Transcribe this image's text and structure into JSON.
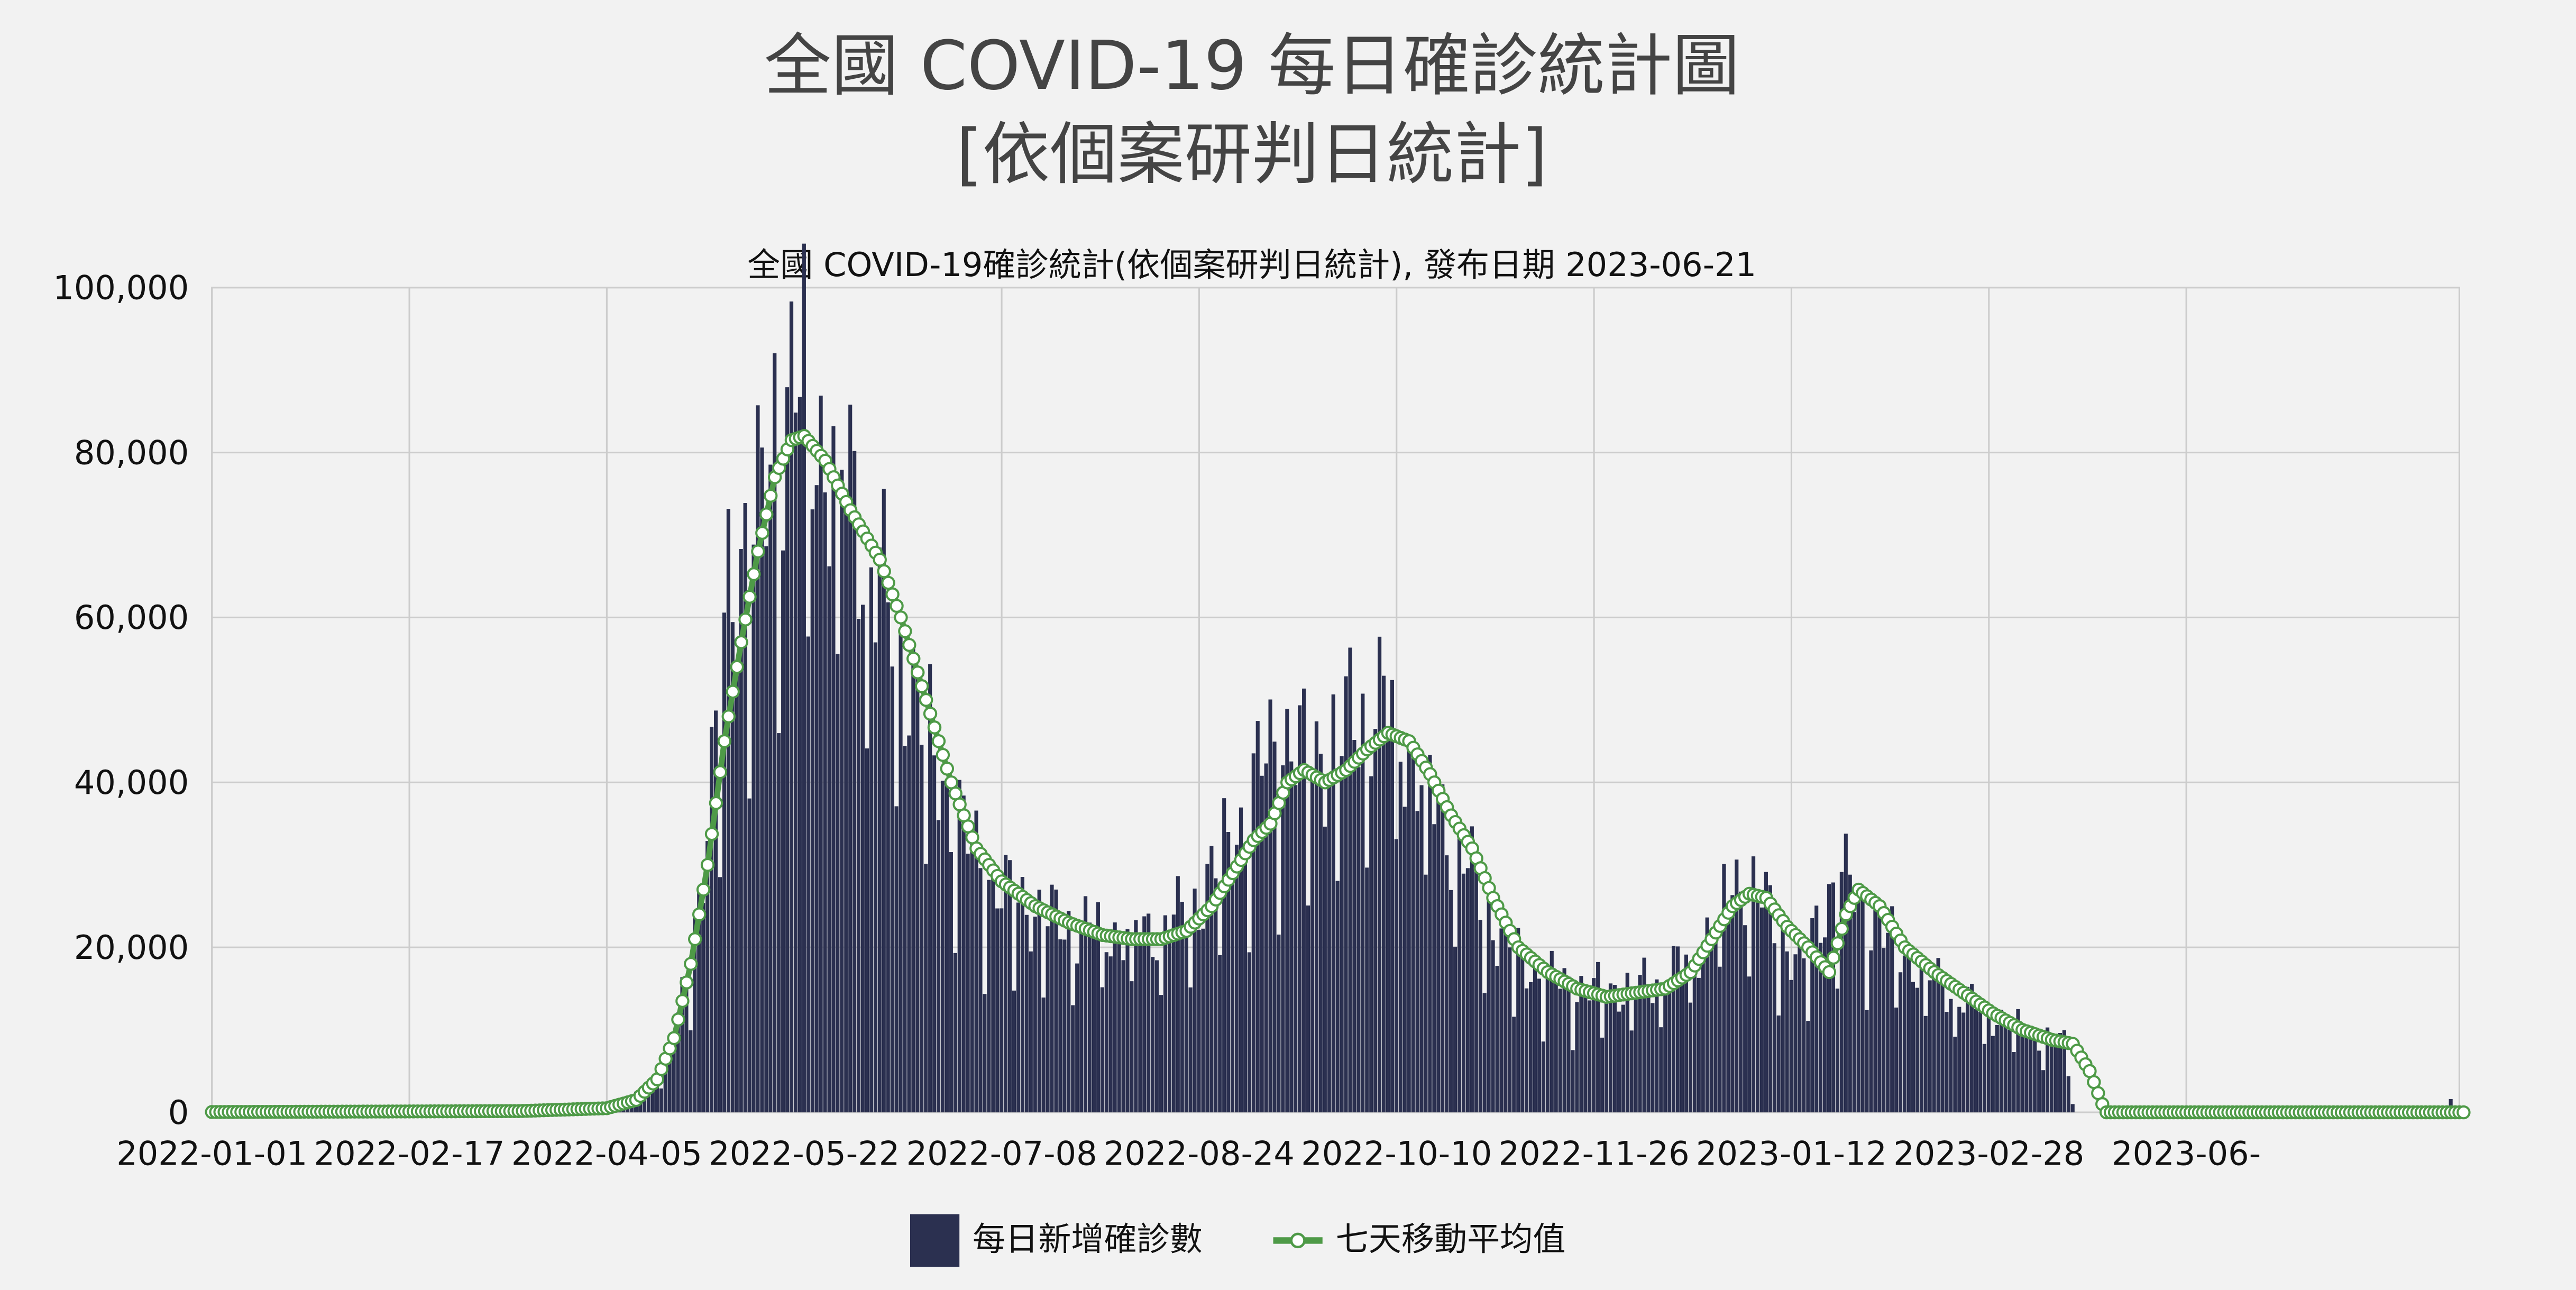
{
  "title": {
    "line1": "全國 COVID-19 每日確診統計圖",
    "line2": "[依個案研判日統計]"
  },
  "subtitle": "全國 COVID-19確診統計(依個案研判日統計), 發布日期 2023-06-21",
  "legend": {
    "bar_label": "每日新增確診數",
    "line_label": "七天移動平均值"
  },
  "colors": {
    "background": "#f2f2f2",
    "bar": "#2b3050",
    "line": "#4e9a47",
    "marker_fill": "#ffffff",
    "grid": "#cccccc"
  },
  "chart_data": {
    "type": "bar",
    "title": "全國 COVID-19確診統計(依個案研判日統計), 發布日期 2023-06-21",
    "x_start": "2022-01-01",
    "x_end": "2023-06-21",
    "x_tick_labels": [
      "2022-01-01",
      "2022-02-17",
      "2022-04-05",
      "2022-05-22",
      "2022-07-08",
      "2022-08-24",
      "2022-10-10",
      "2022-11-26",
      "2023-01-12",
      "2023-02-28",
      "2023-06-"
    ],
    "ylim": [
      0,
      100000
    ],
    "y_tick_labels": [
      "0",
      "20,000",
      "40,000",
      "60,000",
      "80,000",
      "100,000"
    ],
    "grid": true,
    "legend_position": "bottom",
    "series": [
      {
        "name": "每日新增確診數",
        "type": "bar",
        "anchors": [
          [
            "2022-01-01",
            60
          ],
          [
            "2022-02-17",
            50
          ],
          [
            "2022-03-15",
            150
          ],
          [
            "2022-03-28",
            400
          ],
          [
            "2022-04-05",
            700
          ],
          [
            "2022-04-10",
            1500
          ],
          [
            "2022-04-15",
            3000
          ],
          [
            "2022-04-19",
            6000
          ],
          [
            "2022-04-22",
            11000
          ],
          [
            "2022-04-25",
            20000
          ],
          [
            "2022-04-28",
            30000
          ],
          [
            "2022-05-01",
            44000
          ],
          [
            "2022-05-04",
            65000
          ],
          [
            "2022-05-08",
            69000
          ],
          [
            "2022-05-12",
            72000
          ],
          [
            "2022-05-15",
            85000
          ],
          [
            "2022-05-18",
            86000
          ],
          [
            "2022-05-22",
            89000
          ],
          [
            "2022-05-26",
            82000
          ],
          [
            "2022-05-30",
            78000
          ],
          [
            "2022-06-03",
            75000
          ],
          [
            "2022-06-08",
            65000
          ],
          [
            "2022-06-13",
            58000
          ],
          [
            "2022-06-18",
            50000
          ],
          [
            "2022-06-24",
            40000
          ],
          [
            "2022-07-01",
            32000
          ],
          [
            "2022-07-08",
            27000
          ],
          [
            "2022-07-15",
            25000
          ],
          [
            "2022-07-22",
            23000
          ],
          [
            "2022-07-29",
            22500
          ],
          [
            "2022-08-05",
            22000
          ],
          [
            "2022-08-12",
            22000
          ],
          [
            "2022-08-19",
            23500
          ],
          [
            "2022-08-24",
            26000
          ],
          [
            "2022-08-29",
            31000
          ],
          [
            "2022-09-03",
            35000
          ],
          [
            "2022-09-08",
            42000
          ],
          [
            "2022-09-13",
            46000
          ],
          [
            "2022-09-18",
            43000
          ],
          [
            "2022-09-23",
            44000
          ],
          [
            "2022-09-28",
            47000
          ],
          [
            "2022-10-04",
            50000
          ],
          [
            "2022-10-10",
            48000
          ],
          [
            "2022-10-15",
            42000
          ],
          [
            "2022-10-21",
            36000
          ],
          [
            "2022-10-27",
            30000
          ],
          [
            "2022-11-03",
            22000
          ],
          [
            "2022-11-10",
            18000
          ],
          [
            "2022-11-17",
            16000
          ],
          [
            "2022-11-26",
            15000
          ],
          [
            "2022-12-03",
            15000
          ],
          [
            "2022-12-10",
            16000
          ],
          [
            "2022-12-17",
            18000
          ],
          [
            "2022-12-23",
            22000
          ],
          [
            "2022-12-28",
            27000
          ],
          [
            "2023-01-01",
            29000
          ],
          [
            "2023-01-05",
            26000
          ],
          [
            "2023-01-10",
            21000
          ],
          [
            "2023-01-15",
            18000
          ],
          [
            "2023-01-19",
            24000
          ],
          [
            "2023-01-23",
            29000
          ],
          [
            "2023-01-28",
            26000
          ],
          [
            "2023-02-04",
            21000
          ],
          [
            "2023-02-11",
            18000
          ],
          [
            "2023-02-18",
            15000
          ],
          [
            "2023-02-28",
            12000
          ],
          [
            "2023-03-07",
            10500
          ],
          [
            "2023-03-14",
            9000
          ],
          [
            "2023-03-18",
            8500
          ],
          [
            "2023-03-20",
            1000
          ],
          [
            "2023-03-21",
            0
          ],
          [
            "2023-06-17",
            0
          ],
          [
            "2023-06-18",
            1500
          ],
          [
            "2023-06-21",
            300
          ]
        ]
      },
      {
        "name": "七天移動平均值",
        "type": "line",
        "anchors": [
          [
            "2022-01-01",
            40
          ],
          [
            "2022-03-15",
            150
          ],
          [
            "2022-04-05",
            500
          ],
          [
            "2022-04-12",
            1500
          ],
          [
            "2022-04-17",
            4000
          ],
          [
            "2022-04-21",
            9000
          ],
          [
            "2022-04-25",
            18000
          ],
          [
            "2022-04-29",
            30000
          ],
          [
            "2022-05-03",
            45000
          ],
          [
            "2022-05-07",
            57000
          ],
          [
            "2022-05-11",
            68000
          ],
          [
            "2022-05-15",
            77000
          ],
          [
            "2022-05-19",
            81500
          ],
          [
            "2022-05-22",
            82000
          ],
          [
            "2022-05-27",
            79000
          ],
          [
            "2022-06-02",
            73000
          ],
          [
            "2022-06-09",
            67000
          ],
          [
            "2022-06-14",
            60000
          ],
          [
            "2022-06-20",
            50000
          ],
          [
            "2022-06-26",
            40000
          ],
          [
            "2022-07-02",
            32000
          ],
          [
            "2022-07-08",
            28000
          ],
          [
            "2022-07-16",
            25000
          ],
          [
            "2022-07-24",
            23000
          ],
          [
            "2022-08-01",
            21500
          ],
          [
            "2022-08-08",
            21000
          ],
          [
            "2022-08-15",
            21000
          ],
          [
            "2022-08-21",
            22000
          ],
          [
            "2022-08-27",
            25000
          ],
          [
            "2022-09-01",
            29000
          ],
          [
            "2022-09-06",
            33000
          ],
          [
            "2022-09-10",
            35000
          ],
          [
            "2022-09-14",
            40000
          ],
          [
            "2022-09-18",
            41500
          ],
          [
            "2022-09-23",
            40000
          ],
          [
            "2022-09-28",
            41500
          ],
          [
            "2022-10-03",
            44000
          ],
          [
            "2022-10-08",
            46000
          ],
          [
            "2022-10-13",
            45000
          ],
          [
            "2022-10-18",
            41000
          ],
          [
            "2022-10-23",
            36000
          ],
          [
            "2022-10-28",
            32000
          ],
          [
            "2022-11-02",
            26000
          ],
          [
            "2022-11-08",
            20000
          ],
          [
            "2022-11-15",
            17000
          ],
          [
            "2022-11-22",
            15000
          ],
          [
            "2022-11-29",
            14000
          ],
          [
            "2022-12-06",
            14500
          ],
          [
            "2022-12-13",
            15000
          ],
          [
            "2022-12-19",
            17000
          ],
          [
            "2022-12-24",
            21000
          ],
          [
            "2022-12-29",
            25000
          ],
          [
            "2023-01-02",
            26500
          ],
          [
            "2023-01-06",
            26000
          ],
          [
            "2023-01-11",
            22500
          ],
          [
            "2023-01-16",
            20000
          ],
          [
            "2023-01-21",
            17000
          ],
          [
            "2023-01-25",
            24000
          ],
          [
            "2023-01-28",
            27000
          ],
          [
            "2023-02-02",
            25000
          ],
          [
            "2023-02-08",
            20000
          ],
          [
            "2023-02-15",
            17000
          ],
          [
            "2023-02-22",
            14500
          ],
          [
            "2023-03-01",
            12000
          ],
          [
            "2023-03-08",
            10000
          ],
          [
            "2023-03-15",
            8800
          ],
          [
            "2023-03-20",
            8300
          ],
          [
            "2023-03-24",
            5000
          ],
          [
            "2023-03-27",
            1000
          ],
          [
            "2023-03-28",
            0
          ],
          [
            "2023-06-21",
            0
          ]
        ]
      }
    ]
  }
}
